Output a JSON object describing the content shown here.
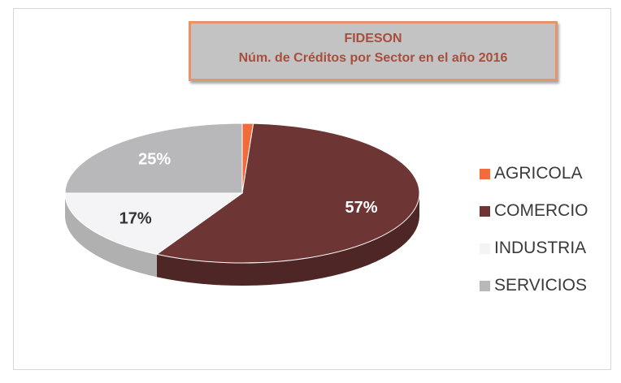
{
  "chart_data": {
    "type": "pie",
    "title": "FIDESON",
    "subtitle": "Núm. de Créditos por Sector en el año 2016",
    "categories": [
      "AGRICOLA",
      "COMERCIO",
      "INDUSTRIA",
      "SERVICIOS"
    ],
    "values": [
      1,
      57,
      17,
      25
    ],
    "data_labels": [
      "",
      "57%",
      "17%",
      "25%"
    ],
    "colors": [
      "#f26b3a",
      "#6e3535",
      "#f4f4f6",
      "#b8b8ba"
    ],
    "legend_position": "right",
    "style": "3d-exploded"
  }
}
